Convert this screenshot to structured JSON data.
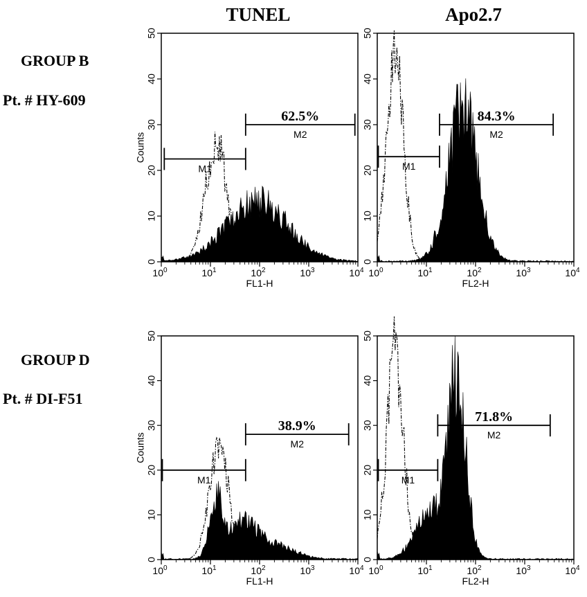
{
  "column_titles": [
    "TUNEL",
    "Apo2.7"
  ],
  "groups": [
    {
      "group_label": "GROUP B",
      "patient_label": "Pt. # HY-609"
    },
    {
      "group_label": "GROUP D",
      "patient_label": "Pt. # DI-F51"
    }
  ],
  "chart_data": [
    {
      "type": "area",
      "row": 0,
      "col": 0,
      "xscale": "log",
      "xlim": [
        1,
        10000
      ],
      "ylim": [
        0,
        50
      ],
      "xticks": [
        1,
        10,
        100,
        1000,
        10000
      ],
      "yticks": [
        0,
        10,
        20,
        30,
        40,
        50
      ],
      "xlabel": "FL1-H",
      "ylabel": "Counts",
      "control_peak": {
        "center": 13,
        "width": 0.22,
        "height": 26
      },
      "sample_components": [
        {
          "center": 90,
          "width": 0.62,
          "height": 13
        }
      ],
      "markers": [
        {
          "label": "M1",
          "x_start": 1.15,
          "x_end": 52,
          "y": 22.5
        },
        {
          "label": "M2",
          "x_start": 52,
          "x_end": 8700,
          "y": 30,
          "percent": "62.5%"
        }
      ]
    },
    {
      "type": "area",
      "row": 0,
      "col": 1,
      "xscale": "log",
      "xlim": [
        1,
        10000
      ],
      "ylim": [
        0,
        50
      ],
      "xticks": [
        1,
        10,
        100,
        1000,
        10000
      ],
      "yticks": [
        0,
        10,
        20,
        30,
        40,
        50
      ],
      "xlabel": "FL2-H",
      "ylabel": "",
      "control_peak": {
        "center": 2.3,
        "width": 0.17,
        "height": 46
      },
      "sample_components": [
        {
          "center": 55,
          "width": 0.3,
          "height": 33
        }
      ],
      "markers": [
        {
          "label": "M1",
          "x_start": 1.05,
          "x_end": 18.5,
          "y": 23
        },
        {
          "label": "M2",
          "x_start": 18.5,
          "x_end": 3800,
          "y": 30,
          "percent": "84.3%"
        }
      ]
    },
    {
      "type": "area",
      "row": 1,
      "col": 0,
      "xscale": "log",
      "xlim": [
        1,
        10000
      ],
      "ylim": [
        0,
        50
      ],
      "xticks": [
        1,
        10,
        100,
        1000,
        10000
      ],
      "yticks": [
        0,
        10,
        20,
        30,
        40,
        50
      ],
      "xlabel": "FL1-H",
      "ylabel": "Counts",
      "control_peak": {
        "center": 15,
        "width": 0.2,
        "height": 25
      },
      "sample_components": [
        {
          "center": 13,
          "width": 0.13,
          "height": 12
        },
        {
          "center": 42,
          "width": 0.3,
          "height": 8
        },
        {
          "center": 200,
          "width": 0.4,
          "height": 3
        }
      ],
      "markers": [
        {
          "label": "M1",
          "x_start": 1.05,
          "x_end": 52,
          "y": 20
        },
        {
          "label": "M2",
          "x_start": 52,
          "x_end": 6500,
          "y": 28,
          "percent": "38.9%"
        }
      ]
    },
    {
      "type": "area",
      "row": 1,
      "col": 1,
      "xscale": "log",
      "xlim": [
        1,
        10000
      ],
      "ylim": [
        0,
        50
      ],
      "xticks": [
        1,
        10,
        100,
        1000,
        10000
      ],
      "yticks": [
        0,
        10,
        20,
        30,
        40,
        50
      ],
      "xlabel": "FL2-H",
      "ylabel": "",
      "control_peak": {
        "center": 2.3,
        "width": 0.17,
        "height": 46
      },
      "sample_components": [
        {
          "center": 42,
          "width": 0.18,
          "height": 40
        },
        {
          "center": 12,
          "width": 0.3,
          "height": 10
        }
      ],
      "markers": [
        {
          "label": "M1",
          "x_start": 1.05,
          "x_end": 17,
          "y": 20
        },
        {
          "label": "M2",
          "x_start": 17,
          "x_end": 3300,
          "y": 30,
          "percent": "71.8%"
        }
      ]
    }
  ]
}
